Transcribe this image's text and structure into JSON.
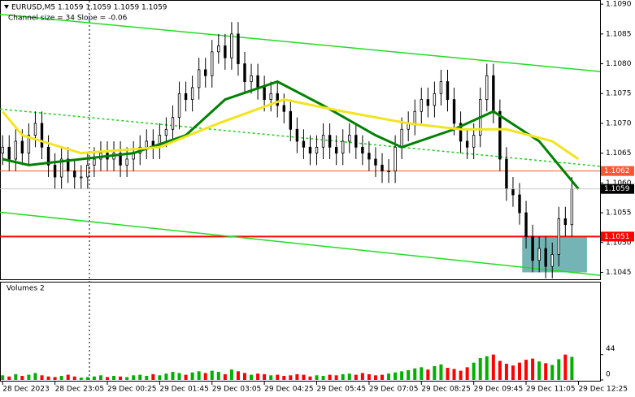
{
  "chart_data": {
    "type": "candlestick",
    "header": "EURUSD,M5  1.1059 1.1059 1.1059 1.1059",
    "subheader": "Channel size = 34 Slope = -0.06",
    "xlim": [
      -0.4,
      91.3
    ],
    "xticks": [
      {
        "value": 0,
        "label": "28 Dec 2023"
      },
      {
        "value": 8,
        "label": "28 Dec 23:05"
      },
      {
        "value": 16,
        "label": "29 Dec 00:25"
      },
      {
        "value": 24,
        "label": "29 Dec 01:45"
      },
      {
        "value": 32,
        "label": "29 Dec 03:05"
      },
      {
        "value": 40,
        "label": "29 Dec 04:25"
      },
      {
        "value": 48,
        "label": "29 Dec 05:45"
      },
      {
        "value": 56,
        "label": "29 Dec 07:05"
      },
      {
        "value": 64,
        "label": "29 Dec 08:25"
      },
      {
        "value": 72,
        "label": "29 Dec 09:45"
      },
      {
        "value": 80,
        "label": "29 Dec 11:05"
      },
      {
        "value": 88,
        "label": "29 Dec 12:25"
      }
    ],
    "ylim": [
      1.10437,
      1.10907
    ],
    "yticks": [
      {
        "value": 1.109,
        "label": "1.1090"
      },
      1.1085,
      {
        "value": 1.108,
        "label": "1.1080"
      },
      1.1075,
      {
        "value": 1.107,
        "label": "1.1070"
      },
      1.1065,
      {
        "value": 1.106,
        "label": "1.1060"
      },
      1.1055,
      {
        "value": 1.105,
        "label": "1.1050"
      },
      1.1045
    ],
    "candle_color": "#000000",
    "open": [
      1.1065,
      1.1066,
      1.1064,
      1.1067,
      1.1065,
      1.1068,
      1.107,
      1.1066,
      1.1063,
      1.1061,
      1.1064,
      1.1062,
      1.1061,
      1.1061,
      1.1063,
      1.1064,
      1.1065,
      1.1064,
      1.1065,
      1.1063,
      1.1064,
      1.1065,
      1.1066,
      1.1067,
      1.1066,
      1.1068,
      1.1069,
      1.1071,
      1.1075,
      1.1074,
      1.1076,
      1.1079,
      1.1078,
      1.1082,
      1.1083,
      1.1081,
      1.1085,
      1.108,
      1.1077,
      1.1078,
      1.1076,
      1.1074,
      1.1075,
      1.1073,
      1.1072,
      1.1069,
      1.1067,
      1.1066,
      1.1065,
      1.1066,
      1.1068,
      1.1066,
      1.1065,
      1.1067,
      1.1068,
      1.1066,
      1.1065,
      1.1064,
      1.1063,
      1.1062,
      1.1062,
      1.1066,
      1.1069,
      1.107,
      1.1072,
      1.1074,
      1.1073,
      1.1075,
      1.1077,
      1.1074,
      1.107,
      1.1067,
      1.1066,
      1.1068,
      1.1074,
      1.1078,
      1.1072,
      1.1064,
      1.1059,
      1.1058,
      1.1055,
      1.1051,
      1.1047,
      1.1049,
      1.1046,
      1.1048,
      1.1054,
      1.1053
    ],
    "high": [
      1.1068,
      1.1068,
      1.1069,
      1.1069,
      1.107,
      1.1072,
      1.1072,
      1.1068,
      1.1065,
      1.1066,
      1.1066,
      1.1064,
      1.1063,
      1.1065,
      1.1066,
      1.1067,
      1.1067,
      1.1067,
      1.1067,
      1.1066,
      1.1067,
      1.1068,
      1.1069,
      1.1069,
      1.107,
      1.1071,
      1.1073,
      1.1077,
      1.1077,
      1.1078,
      1.1081,
      1.1081,
      1.1084,
      1.1085,
      1.1085,
      1.1087,
      1.1087,
      1.1082,
      1.108,
      1.108,
      1.1078,
      1.1077,
      1.1077,
      1.1075,
      1.1074,
      1.1071,
      1.1069,
      1.1068,
      1.1068,
      1.107,
      1.107,
      1.1068,
      1.1069,
      1.107,
      1.107,
      1.1068,
      1.1067,
      1.1066,
      1.1065,
      1.1064,
      1.1068,
      1.1071,
      1.1072,
      1.1074,
      1.1076,
      1.1076,
      1.1077,
      1.1079,
      1.1079,
      1.1076,
      1.1072,
      1.1069,
      1.107,
      1.1076,
      1.108,
      1.108,
      1.1074,
      1.1066,
      1.1061,
      1.106,
      1.1057,
      1.1053,
      1.1051,
      1.1051,
      1.105,
      1.1056,
      1.1056,
      1.1061
    ],
    "low": [
      1.1063,
      1.1062,
      1.1062,
      1.1063,
      1.1063,
      1.1066,
      1.1064,
      1.1061,
      1.1059,
      1.1059,
      1.106,
      1.1059,
      1.1059,
      1.1059,
      1.1061,
      1.1062,
      1.1062,
      1.1062,
      1.1061,
      1.1061,
      1.1062,
      1.1063,
      1.1064,
      1.1064,
      1.1064,
      1.1066,
      1.1067,
      1.1069,
      1.1072,
      1.1072,
      1.1074,
      1.1076,
      1.1076,
      1.108,
      1.1079,
      1.1079,
      1.1078,
      1.1075,
      1.1075,
      1.1074,
      1.1072,
      1.1072,
      1.1071,
      1.107,
      1.1067,
      1.1065,
      1.1064,
      1.1063,
      1.1063,
      1.1064,
      1.1064,
      1.1063,
      1.1063,
      1.1065,
      1.1064,
      1.1063,
      1.1062,
      1.1061,
      1.106,
      1.106,
      1.106,
      1.1064,
      1.1067,
      1.1068,
      1.107,
      1.1071,
      1.1071,
      1.1073,
      1.1072,
      1.1068,
      1.1065,
      1.1064,
      1.1064,
      1.1066,
      1.1072,
      1.107,
      1.1062,
      1.1057,
      1.1056,
      1.1053,
      1.1049,
      1.1045,
      1.1045,
      1.1044,
      1.1044,
      1.1046,
      1.1051,
      1.1051
    ],
    "close": [
      1.1066,
      1.1064,
      1.1067,
      1.1065,
      1.1068,
      1.107,
      1.1066,
      1.1063,
      1.1061,
      1.1064,
      1.1062,
      1.1061,
      1.1061,
      1.1063,
      1.1064,
      1.1065,
      1.1064,
      1.1065,
      1.1063,
      1.1064,
      1.1065,
      1.1066,
      1.1067,
      1.1066,
      1.1068,
      1.1069,
      1.1071,
      1.1075,
      1.1074,
      1.1076,
      1.1079,
      1.1078,
      1.1082,
      1.1083,
      1.1081,
      1.1085,
      1.108,
      1.1077,
      1.1078,
      1.1076,
      1.1074,
      1.1075,
      1.1073,
      1.1072,
      1.1069,
      1.1067,
      1.1066,
      1.1065,
      1.1066,
      1.1068,
      1.1066,
      1.1065,
      1.1067,
      1.1068,
      1.1066,
      1.1065,
      1.1064,
      1.1063,
      1.1062,
      1.1062,
      1.1066,
      1.1069,
      1.107,
      1.1072,
      1.1074,
      1.1073,
      1.1075,
      1.1077,
      1.1074,
      1.107,
      1.1067,
      1.1066,
      1.1068,
      1.1074,
      1.1078,
      1.1072,
      1.1064,
      1.1059,
      1.1058,
      1.1055,
      1.1051,
      1.1047,
      1.1049,
      1.1046,
      1.1048,
      1.1054,
      1.1053,
      1.1059
    ],
    "overlays": [
      {
        "color": "#008000",
        "width": 3,
        "x": [
          0,
          4,
          12,
          20,
          28,
          34,
          42,
          49,
          57,
          61,
          69,
          75,
          82,
          88
        ],
        "values": [
          1.1064,
          1.1063,
          1.1064,
          1.1065,
          1.1068,
          1.1074,
          1.1077,
          1.1073,
          1.1068,
          1.1066,
          1.1069,
          1.1072,
          1.1067,
          1.1059
        ]
      },
      {
        "color": "#f2e41e",
        "width": 3,
        "x": [
          0,
          3,
          12,
          24,
          33,
          43,
          52,
          62,
          70,
          77,
          84,
          88
        ],
        "values": [
          1.1072,
          1.1068,
          1.1065,
          1.1066,
          1.107,
          1.1074,
          1.1072,
          1.107,
          1.1069,
          1.1069,
          1.1067,
          1.1064
        ]
      }
    ],
    "trendlines": [
      {
        "color": "#22dd22",
        "dashed": false,
        "x": [
          -0.4,
          91.3
        ],
        "values": [
          1.10883,
          1.10787
        ]
      },
      {
        "color": "#22cc22",
        "dashed": true,
        "x": [
          -0.4,
          91.3
        ],
        "values": [
          1.10724,
          1.10628
        ]
      },
      {
        "color": "#22dd22",
        "dashed": false,
        "x": [
          -0.4,
          91.3
        ],
        "values": [
          1.10551,
          1.10445
        ]
      }
    ],
    "zone": {
      "x": [
        79.4,
        89.3
      ],
      "y": [
        1.1045,
        1.1051
      ],
      "color": "#2a8c8c"
    },
    "levels": [
      {
        "value": 1.1062,
        "color": "#ff5533"
      },
      {
        "value": 1.1051,
        "color": "#ff0000"
      }
    ],
    "last_price": 1.1059,
    "volume": {
      "title": "Volumes 2",
      "ylim": [
        0,
        166
      ],
      "yticks": [
        0,
        44
      ],
      "up_color": "#00b000",
      "down_color": "#ff0000",
      "values": [
        8,
        6,
        10,
        7,
        9,
        12,
        8,
        6,
        5,
        7,
        9,
        6,
        4,
        5,
        6,
        8,
        5,
        7,
        6,
        5,
        8,
        9,
        7,
        10,
        8,
        11,
        14,
        12,
        9,
        13,
        15,
        12,
        16,
        14,
        10,
        18,
        15,
        12,
        9,
        11,
        10,
        8,
        9,
        7,
        8,
        10,
        9,
        6,
        8,
        7,
        9,
        8,
        10,
        11,
        9,
        12,
        10,
        8,
        9,
        11,
        13,
        15,
        17,
        20,
        22,
        18,
        24,
        27,
        21,
        19,
        16,
        22,
        30,
        38,
        41,
        44,
        33,
        28,
        25,
        30,
        35,
        37,
        32,
        29,
        26,
        36,
        44,
        40
      ]
    }
  }
}
